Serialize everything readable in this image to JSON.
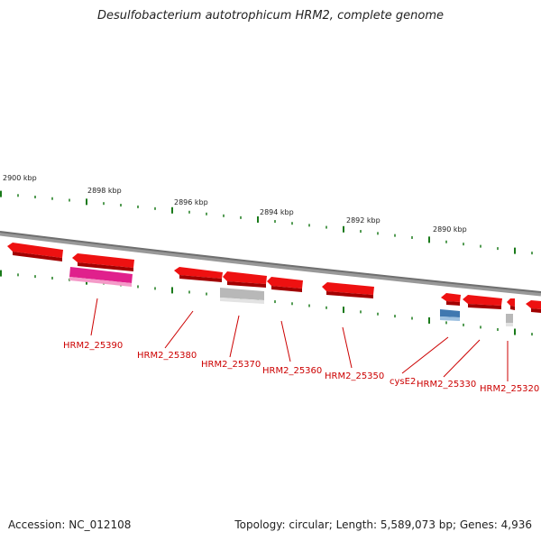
{
  "title": "Desulfobacterium autotrophicum HRM2, complete genome",
  "accession": "Accession: NC_012108",
  "summary": "Topology: circular; Length: 5,589,073 bp; Genes: 4,936",
  "scale_labels": [
    "2900 kbp",
    "2898 kbp",
    "2896 kbp",
    "2894 kbp",
    "2892 kbp",
    "2890 kbp"
  ],
  "gene_labels": [
    "HRM2_25390",
    "HRM2_25380",
    "HRM2_25370",
    "HRM2_25360",
    "HRM2_25350",
    "cysE2",
    "HRM2_25330",
    "HRM2_25320"
  ],
  "colors": {
    "backbone": "#808080",
    "tick": "#1a7a1a",
    "feature_red": "#ee1111",
    "feature_magenta": "#e0208c",
    "feature_gray": "#b8b8b8",
    "feature_blue": "#3f78b0",
    "label_red": "#cc0000"
  }
}
